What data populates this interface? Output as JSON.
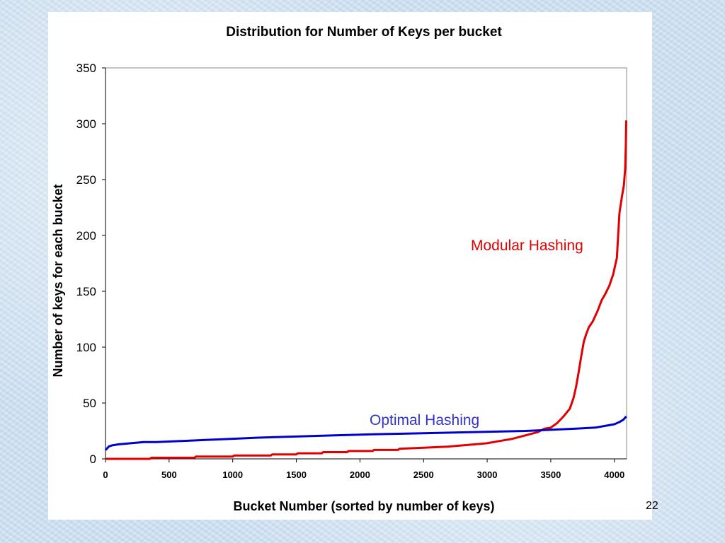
{
  "slide": {
    "page_number": "22"
  },
  "chart_data": {
    "type": "line",
    "title": "Distribution for Number of Keys per bucket",
    "xlabel": "Bucket Number (sorted by number of keys)",
    "ylabel": "Number of keys for each bucket",
    "xlim": [
      0,
      4096
    ],
    "ylim": [
      0,
      350
    ],
    "xticks": [
      "0",
      "500",
      "1000",
      "1500",
      "2000",
      "2500",
      "3000",
      "3500",
      "4000"
    ],
    "yticks": [
      "0",
      "50",
      "100",
      "150",
      "200",
      "250",
      "300",
      "350"
    ],
    "grid": false,
    "legend": "none",
    "series": [
      {
        "name": "Modular Hashing",
        "color": "#e00000",
        "points": [
          [
            0,
            0
          ],
          [
            350,
            0
          ],
          [
            360,
            1
          ],
          [
            700,
            1
          ],
          [
            710,
            2
          ],
          [
            1000,
            2
          ],
          [
            1010,
            3
          ],
          [
            1300,
            3
          ],
          [
            1310,
            4
          ],
          [
            1500,
            4
          ],
          [
            1510,
            5
          ],
          [
            1700,
            5
          ],
          [
            1710,
            6
          ],
          [
            1900,
            6
          ],
          [
            1910,
            7
          ],
          [
            2100,
            7
          ],
          [
            2110,
            8
          ],
          [
            2300,
            8
          ],
          [
            2310,
            9
          ],
          [
            2500,
            10
          ],
          [
            2700,
            11
          ],
          [
            2800,
            12
          ],
          [
            2900,
            13
          ],
          [
            3000,
            14
          ],
          [
            3100,
            16
          ],
          [
            3200,
            18
          ],
          [
            3300,
            21
          ],
          [
            3400,
            24
          ],
          [
            3450,
            27
          ],
          [
            3500,
            28
          ],
          [
            3550,
            32
          ],
          [
            3600,
            38
          ],
          [
            3650,
            45
          ],
          [
            3680,
            55
          ],
          [
            3700,
            65
          ],
          [
            3720,
            78
          ],
          [
            3740,
            92
          ],
          [
            3760,
            105
          ],
          [
            3780,
            112
          ],
          [
            3800,
            118
          ],
          [
            3830,
            123
          ],
          [
            3870,
            133
          ],
          [
            3900,
            142
          ],
          [
            3930,
            148
          ],
          [
            3960,
            155
          ],
          [
            3990,
            165
          ],
          [
            4020,
            180
          ],
          [
            4030,
            200
          ],
          [
            4040,
            220
          ],
          [
            4060,
            235
          ],
          [
            4075,
            245
          ],
          [
            4085,
            260
          ],
          [
            4090,
            280
          ],
          [
            4093,
            303
          ]
        ],
        "label": "Modular Hashing"
      },
      {
        "name": "Optimal Hashing",
        "color": "#0000cc",
        "points": [
          [
            0,
            8
          ],
          [
            10,
            9
          ],
          [
            25,
            11
          ],
          [
            50,
            12
          ],
          [
            100,
            13
          ],
          [
            200,
            14
          ],
          [
            300,
            15
          ],
          [
            400,
            15
          ],
          [
            600,
            16
          ],
          [
            800,
            17
          ],
          [
            1000,
            18
          ],
          [
            1200,
            19
          ],
          [
            1500,
            20
          ],
          [
            1800,
            21
          ],
          [
            2100,
            22
          ],
          [
            2500,
            23
          ],
          [
            2900,
            24
          ],
          [
            3300,
            25
          ],
          [
            3500,
            26
          ],
          [
            3700,
            27
          ],
          [
            3850,
            28
          ],
          [
            3950,
            30
          ],
          [
            4000,
            31
          ],
          [
            4040,
            33
          ],
          [
            4070,
            35
          ],
          [
            4093,
            38
          ]
        ],
        "label": "Optimal Hashing"
      }
    ],
    "annotations": [
      {
        "text": "Modular Hashing",
        "series": 0
      },
      {
        "text": "Optimal Hashing",
        "series": 1
      }
    ]
  }
}
